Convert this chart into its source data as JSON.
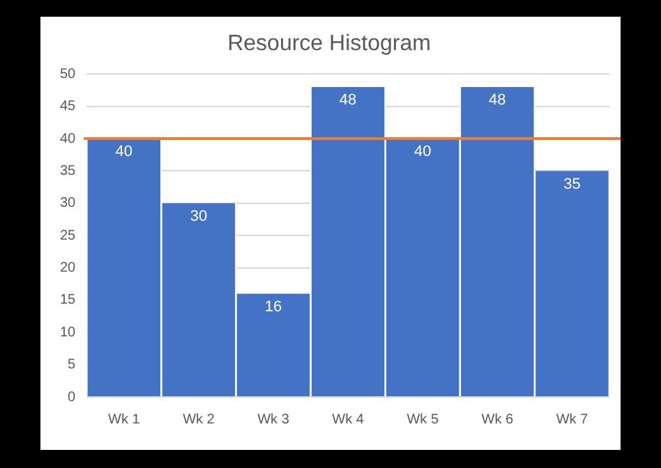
{
  "chart_data": {
    "type": "bar",
    "title": "Resource Histogram",
    "categories": [
      "Wk 1",
      "Wk 2",
      "Wk 3",
      "Wk 4",
      "Wk 5",
      "Wk 6",
      "Wk 7"
    ],
    "values": [
      40,
      30,
      16,
      48,
      40,
      48,
      35
    ],
    "color": "#4472c4",
    "ylim": [
      0,
      50
    ],
    "yticks": [
      0,
      5,
      10,
      15,
      20,
      25,
      30,
      35,
      40,
      45,
      50
    ],
    "grid": "y",
    "data_labels": true,
    "ref_lines": [
      {
        "axis": "y",
        "value": 40,
        "color": "#ed7d31"
      }
    ]
  }
}
